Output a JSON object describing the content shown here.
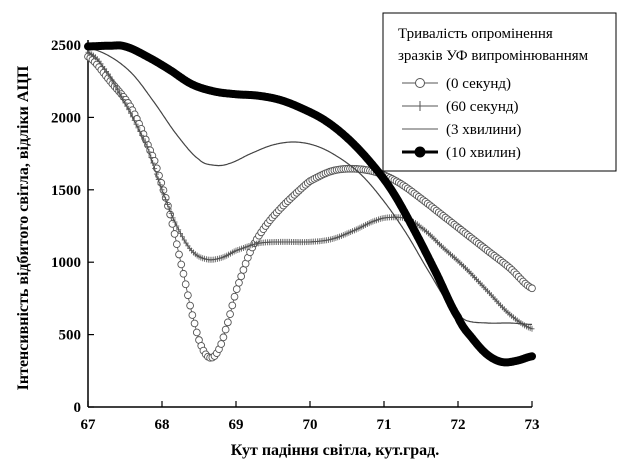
{
  "chart_data": {
    "type": "line",
    "xlabel": "Кут падіння світла, кут.град.",
    "ylabel": "Інтенсивність відбитого світла, відліки АЦП",
    "xlim": [
      67,
      73
    ],
    "ylim": [
      0,
      2500
    ],
    "xticks": [
      "67",
      "68",
      "69",
      "70",
      "71",
      "72",
      "73"
    ],
    "yticks": [
      "0",
      "500",
      "1000",
      "1500",
      "2000",
      "2500"
    ],
    "grid": false,
    "legend_title": [
      "Тривалість опромінення",
      "зразків УФ випромінюванням"
    ],
    "legend_position": "top-right",
    "series": [
      {
        "name": "(0 секунд)",
        "marker": "open-circle",
        "x": [
          67,
          67.3,
          67.6,
          67.9,
          68.1,
          68.3,
          68.45,
          68.55,
          68.65,
          68.75,
          68.85,
          69.0,
          69.2,
          69.4,
          69.6,
          69.8,
          70.0,
          70.3,
          70.6,
          70.9,
          71.2,
          71.5,
          71.8,
          72.1,
          72.4,
          72.7,
          73.0
        ],
        "y": [
          2420,
          2250,
          2050,
          1700,
          1350,
          900,
          560,
          400,
          340,
          380,
          520,
          800,
          1080,
          1250,
          1370,
          1470,
          1560,
          1630,
          1645,
          1620,
          1550,
          1440,
          1320,
          1200,
          1080,
          960,
          820
        ]
      },
      {
        "name": "(60 секунд)",
        "marker": "plus",
        "x": [
          67,
          67.2,
          67.5,
          67.8,
          68.0,
          68.2,
          68.4,
          68.6,
          68.8,
          69.0,
          69.3,
          69.6,
          70.0,
          70.3,
          70.6,
          70.9,
          71.1,
          71.3,
          71.5,
          71.8,
          72.1,
          72.4,
          72.7,
          73.0
        ],
        "y": [
          2450,
          2350,
          2100,
          1800,
          1500,
          1250,
          1080,
          1020,
          1030,
          1080,
          1130,
          1140,
          1140,
          1160,
          1220,
          1290,
          1310,
          1300,
          1240,
          1100,
          960,
          800,
          640,
          540
        ]
      },
      {
        "name": "(3 хвилини)",
        "marker": "line",
        "x": [
          67,
          67.3,
          67.6,
          67.9,
          68.2,
          68.5,
          68.7,
          68.9,
          69.2,
          69.5,
          69.8,
          70.1,
          70.4,
          70.7,
          71.0,
          71.3,
          71.6,
          71.9,
          72.1,
          72.4,
          72.7,
          73.0
        ],
        "y": [
          2480,
          2420,
          2300,
          2100,
          1880,
          1710,
          1670,
          1680,
          1750,
          1810,
          1830,
          1800,
          1720,
          1600,
          1420,
          1200,
          940,
          700,
          600,
          580,
          580,
          570
        ]
      },
      {
        "name": "(10 хвилин)",
        "marker": "filled-circle",
        "x": [
          67,
          67.3,
          67.5,
          67.8,
          68.1,
          68.4,
          68.7,
          69.0,
          69.3,
          69.6,
          69.9,
          70.2,
          70.5,
          70.8,
          71.1,
          71.4,
          71.7,
          72.0,
          72.2,
          72.4,
          72.6,
          72.8,
          73.0
        ],
        "y": [
          2490,
          2495,
          2490,
          2420,
          2330,
          2230,
          2180,
          2160,
          2150,
          2120,
          2060,
          1980,
          1860,
          1700,
          1500,
          1230,
          930,
          620,
          470,
          360,
          310,
          320,
          350
        ]
      }
    ]
  }
}
